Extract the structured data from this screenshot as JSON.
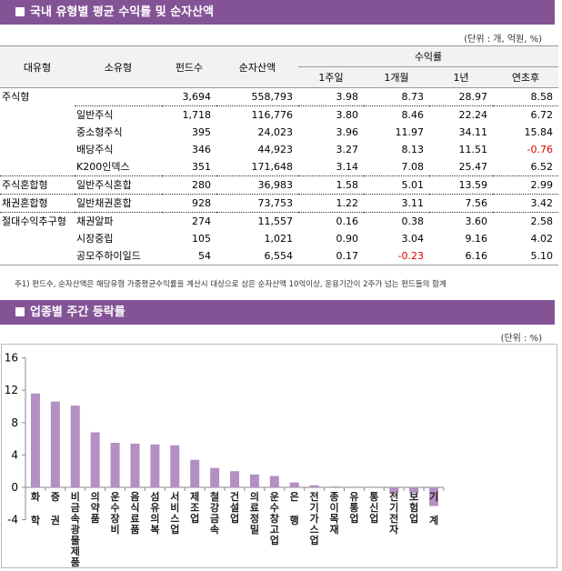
{
  "section1": {
    "title": "국내 유형별 평균 수익률 및 순자산액",
    "unit": "(단위 : 개, 억원, %)"
  },
  "table": {
    "headers": {
      "major": "대유형",
      "minor": "소유형",
      "funds": "펀드수",
      "nav": "순자산액",
      "returns": "수익률",
      "w1": "1주일",
      "m1": "1개월",
      "y1": "1년",
      "ytd": "연초후"
    },
    "rows": [
      {
        "major": "주식형",
        "minor": "",
        "funds": "3,694",
        "nav": "558,793",
        "w1": "3.98",
        "m1": "8.73",
        "y1": "28.97",
        "ytd": "8.58"
      },
      {
        "major": "",
        "minor": "일반주식",
        "funds": "1,718",
        "nav": "116,776",
        "w1": "3.80",
        "m1": "8.46",
        "y1": "22.24",
        "ytd": "6.72"
      },
      {
        "major": "",
        "minor": "중소형주식",
        "funds": "395",
        "nav": "24,023",
        "w1": "3.96",
        "m1": "11.97",
        "y1": "34.11",
        "ytd": "15.84"
      },
      {
        "major": "",
        "minor": "배당주식",
        "funds": "346",
        "nav": "44,923",
        "w1": "3.27",
        "m1": "8.13",
        "y1": "11.51",
        "ytd": "-0.76"
      },
      {
        "major": "",
        "minor": "K200인덱스",
        "funds": "351",
        "nav": "171,648",
        "w1": "3.14",
        "m1": "7.08",
        "y1": "25.47",
        "ytd": "6.52"
      },
      {
        "major": "주식혼합형",
        "minor": "일반주식혼합",
        "funds": "280",
        "nav": "36,983",
        "w1": "1.58",
        "m1": "5.01",
        "y1": "13.59",
        "ytd": "2.99"
      },
      {
        "major": "채권혼합형",
        "minor": "일반채권혼합",
        "funds": "928",
        "nav": "73,753",
        "w1": "1.22",
        "m1": "3.11",
        "y1": "7.56",
        "ytd": "3.42"
      },
      {
        "major": "절대수익추구형",
        "minor": "채권알파",
        "funds": "274",
        "nav": "11,557",
        "w1": "0.16",
        "m1": "0.38",
        "y1": "3.60",
        "ytd": "2.58"
      },
      {
        "major": "",
        "minor": "시장중립",
        "funds": "105",
        "nav": "1,021",
        "w1": "0.90",
        "m1": "3.04",
        "y1": "9.16",
        "ytd": "4.02"
      },
      {
        "major": "",
        "minor": "공모주하이일드",
        "funds": "54",
        "nav": "6,554",
        "w1": "0.17",
        "m1": "-0.23",
        "y1": "6.16",
        "ytd": "5.10"
      }
    ],
    "note": "주1) 펀드수, 순자산액은 해당유형 가중평균수익률을 계산시 대상으로 삼은 순자산액 10억이상, 운용기간이 2주가 넘는 펀드들의 합계"
  },
  "section2": {
    "title": "업종별 주간 등락률",
    "unit": "(단위 : %)"
  },
  "colors": {
    "banner": "#845396",
    "bar": "#b38fc3",
    "negative": "#e00000"
  },
  "chart_data": {
    "type": "bar",
    "categories": [
      "화학",
      "증권",
      "비금속광물제품",
      "의약품",
      "운수장비",
      "음식료품",
      "섬유의복",
      "서비스업",
      "제조업",
      "철강금속",
      "건설업",
      "의료정밀",
      "운수창고업",
      "은행",
      "전기가스업",
      "종이목재",
      "유통업",
      "통신업",
      "전기전자",
      "보험업",
      "기계"
    ],
    "values": [
      11.6,
      10.6,
      10.1,
      6.8,
      5.5,
      5.4,
      5.3,
      5.2,
      3.4,
      2.4,
      2.0,
      1.6,
      1.4,
      0.6,
      0.25,
      0.1,
      0.0,
      0.0,
      -0.6,
      -0.7,
      -2.3
    ],
    "yticks": [
      "16",
      "12",
      "8",
      "4",
      "0",
      "-4"
    ],
    "ylim": [
      -4,
      16
    ],
    "grid": false
  }
}
